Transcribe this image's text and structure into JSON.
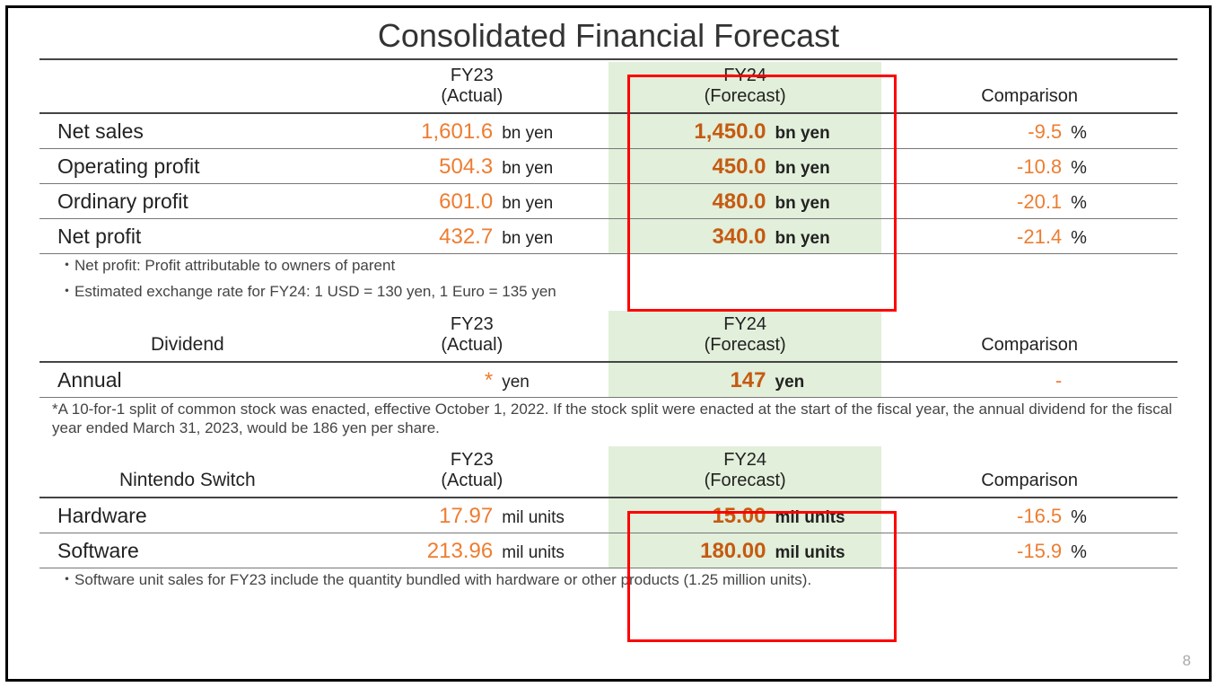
{
  "title": "Consolidated Financial Forecast",
  "page_number": "8",
  "colors": {
    "accent_light": "#ed7d31",
    "accent_dark": "#c55a11",
    "highlight_bg": "#e2efda",
    "border_red": "#ff0000",
    "text": "#222222",
    "note": "#444444"
  },
  "headers": {
    "fy23": "FY23\n(Actual)",
    "fy24": "FY24\n(Forecast)",
    "comparison": "Comparison"
  },
  "table1": {
    "rows": [
      {
        "label": "Net sales",
        "fy23_val": "1,601.6",
        "fy23_unit": "bn yen",
        "fy24_val": "1,450.0",
        "fy24_unit": "bn yen",
        "comp_val": "-9.5",
        "comp_unit": "%"
      },
      {
        "label": "Operating profit",
        "fy23_val": "504.3",
        "fy23_unit": "bn yen",
        "fy24_val": "450.0",
        "fy24_unit": "bn yen",
        "comp_val": "-10.8",
        "comp_unit": "%"
      },
      {
        "label": "Ordinary profit",
        "fy23_val": "601.0",
        "fy23_unit": "bn yen",
        "fy24_val": "480.0",
        "fy24_unit": "bn yen",
        "comp_val": "-20.1",
        "comp_unit": "%"
      },
      {
        "label": "Net profit",
        "fy23_val": "432.7",
        "fy23_unit": "bn yen",
        "fy24_val": "340.0",
        "fy24_unit": "bn yen",
        "comp_val": "-21.4",
        "comp_unit": "%"
      }
    ],
    "notes": [
      "・Net profit: Profit attributable to owners of parent",
      "・Estimated exchange rate for FY24: 1 USD = 130 yen, 1 Euro = 135 yen"
    ]
  },
  "table2": {
    "section_label": "Dividend",
    "rows": [
      {
        "label": "Annual",
        "fy23_val": "*",
        "fy23_unit": "yen",
        "fy24_val": "147",
        "fy24_unit": "yen",
        "comp_val": "-",
        "comp_unit": ""
      }
    ],
    "notes": [
      "*A 10-for-1 split of common stock was enacted, effective October 1, 2022. If the stock split were enacted at the start of the fiscal year, the annual dividend for the fiscal year ended March 31, 2023, would be 186 yen per share."
    ]
  },
  "table3": {
    "section_label": "Nintendo Switch",
    "rows": [
      {
        "label": "Hardware",
        "fy23_val": "17.97",
        "fy23_unit": "mil units",
        "fy24_val": "15.00",
        "fy24_unit": "mil units",
        "comp_val": "-16.5",
        "comp_unit": "%"
      },
      {
        "label": "Software",
        "fy23_val": "213.96",
        "fy23_unit": "mil units",
        "fy24_val": "180.00",
        "fy24_unit": "mil units",
        "comp_val": "-15.9",
        "comp_unit": "%"
      }
    ],
    "notes": [
      "・Software unit sales for FY23 include the quantity bundled with hardware or other products (1.25 million units)."
    ]
  }
}
